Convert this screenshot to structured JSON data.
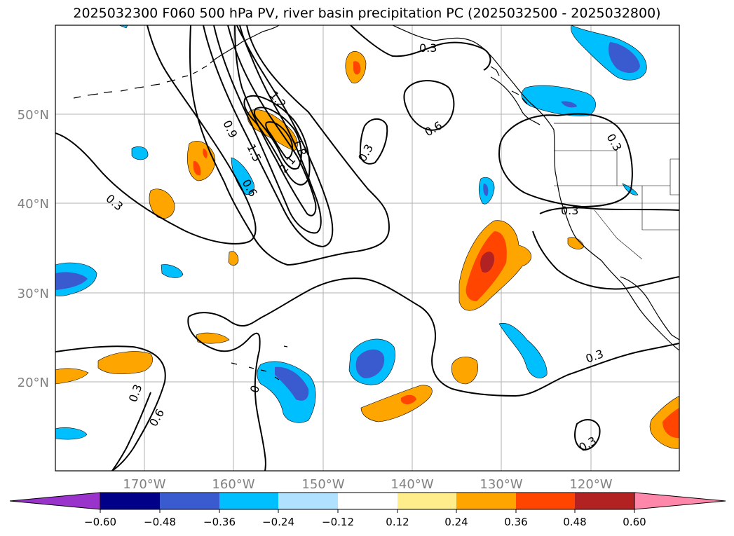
{
  "title": "2025032300 F060 500 hPa PV, river basin precipitation PC (2025032500 - 2025032800)",
  "longitude_labels": [
    "170°W",
    "160°W",
    "150°W",
    "140°W",
    "130°W",
    "120°W"
  ],
  "latitude_labels": [
    "50°N",
    "40°N",
    "30°N",
    "20°N"
  ],
  "contour_labels": [
    {
      "id": "c1",
      "text": "0.3"
    },
    {
      "id": "c2",
      "text": "1.2"
    },
    {
      "id": "c3",
      "text": "0.9"
    },
    {
      "id": "c4",
      "text": "1.5"
    },
    {
      "id": "c5",
      "text": "1.8"
    },
    {
      "id": "c6",
      "text": "2.1"
    },
    {
      "id": "c7",
      "text": "0.6"
    },
    {
      "id": "c8",
      "text": "0.3"
    },
    {
      "id": "c9",
      "text": "0.6"
    },
    {
      "id": "c10",
      "text": "0.3"
    },
    {
      "id": "c11",
      "text": "0.3"
    },
    {
      "id": "c12",
      "text": "0.3"
    },
    {
      "id": "c13",
      "text": "0.3"
    },
    {
      "id": "c14",
      "text": "0.6"
    },
    {
      "id": "c15",
      "text": "0.3"
    },
    {
      "id": "c16",
      "text": "0.3"
    },
    {
      "id": "c17",
      "text": "0"
    }
  ],
  "colorbar": {
    "tick_labels": [
      "−0.60",
      "−0.48",
      "−0.36",
      "−0.24",
      "−0.12",
      "0.12",
      "0.24",
      "0.36",
      "0.48",
      "0.60"
    ],
    "colors": [
      "#9933cc",
      "#000088",
      "#3a5bd0",
      "#00bfff",
      "#b0e2ff",
      "#ffffff",
      "#ffec8b",
      "#ffa500",
      "#ff4500",
      "#b22222",
      "#ff88aa"
    ]
  },
  "palette": {
    "neg_strong": "#3a5bd0",
    "neg_mid": "#00bfff",
    "neg_light": "#b0e2ff",
    "pos_light": "#ffec8b",
    "pos_mid": "#ffa500",
    "pos_strong": "#ff4500",
    "pos_max": "#b22222"
  }
}
